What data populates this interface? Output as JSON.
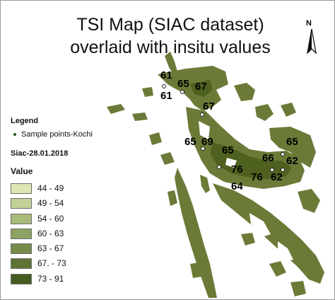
{
  "title": {
    "line1": "TSI Map (SIAC dataset)",
    "line2": "overlaid with insitu values"
  },
  "north_arrow": {
    "label": "N"
  },
  "legend": {
    "heading": "Legend",
    "sample_points": "Sample points-Kochi",
    "layer": "Siac-28.01.2018",
    "field": "Value",
    "classes": [
      {
        "label": "44 - 49",
        "color": "#dde7b4"
      },
      {
        "label": "49 - 54",
        "color": "#c2d297"
      },
      {
        "label": "54 - 60",
        "color": "#a8bb7a"
      },
      {
        "label": "60 - 63",
        "color": "#8ea263"
      },
      {
        "label": "63 - 67",
        "color": "#768a4a"
      },
      {
        "label": "67. - 73",
        "color": "#5f7434"
      },
      {
        "label": "73 - 91",
        "color": "#455b1f"
      }
    ]
  },
  "map": {
    "water_color": "#6b7a37"
  },
  "insitu_values": [
    "61",
    "65",
    "67",
    "61",
    "67",
    "65",
    "69",
    "65",
    "65",
    "66",
    "62",
    "76",
    "76",
    "62",
    "64"
  ]
}
